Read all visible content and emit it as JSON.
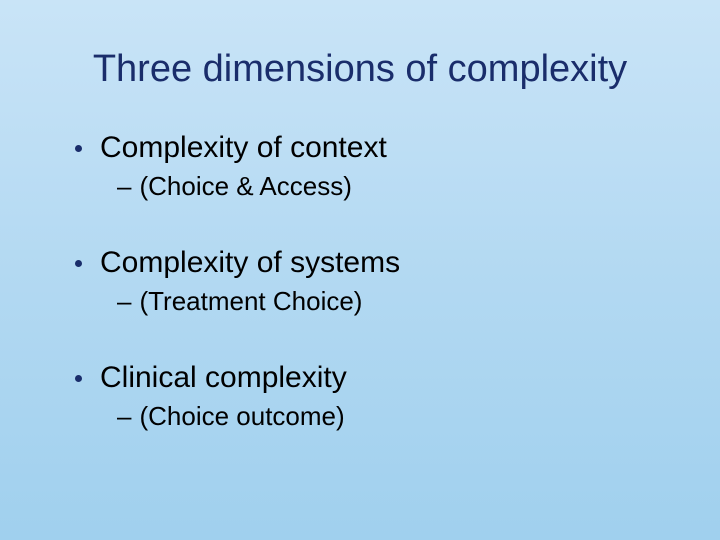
{
  "slide": {
    "title": "Three dimensions of complexity",
    "title_color": "#1a2d6b",
    "title_fontsize": 38,
    "body_fontsize_l1": 30,
    "body_fontsize_l2": 26,
    "bullet_dot_color": "#1a2d6b",
    "text_color": "#000000",
    "background_gradient_top": "#c9e4f7",
    "background_gradient_mid": "#b3d9f2",
    "background_gradient_bottom": "#a0d0ee",
    "items": [
      {
        "label": "Complexity of context",
        "sub": "(Choice & Access)"
      },
      {
        "label": "Complexity of systems",
        "sub": "(Treatment Choice)"
      },
      {
        "label": "Clinical complexity",
        "sub": "(Choice outcome)"
      }
    ]
  }
}
